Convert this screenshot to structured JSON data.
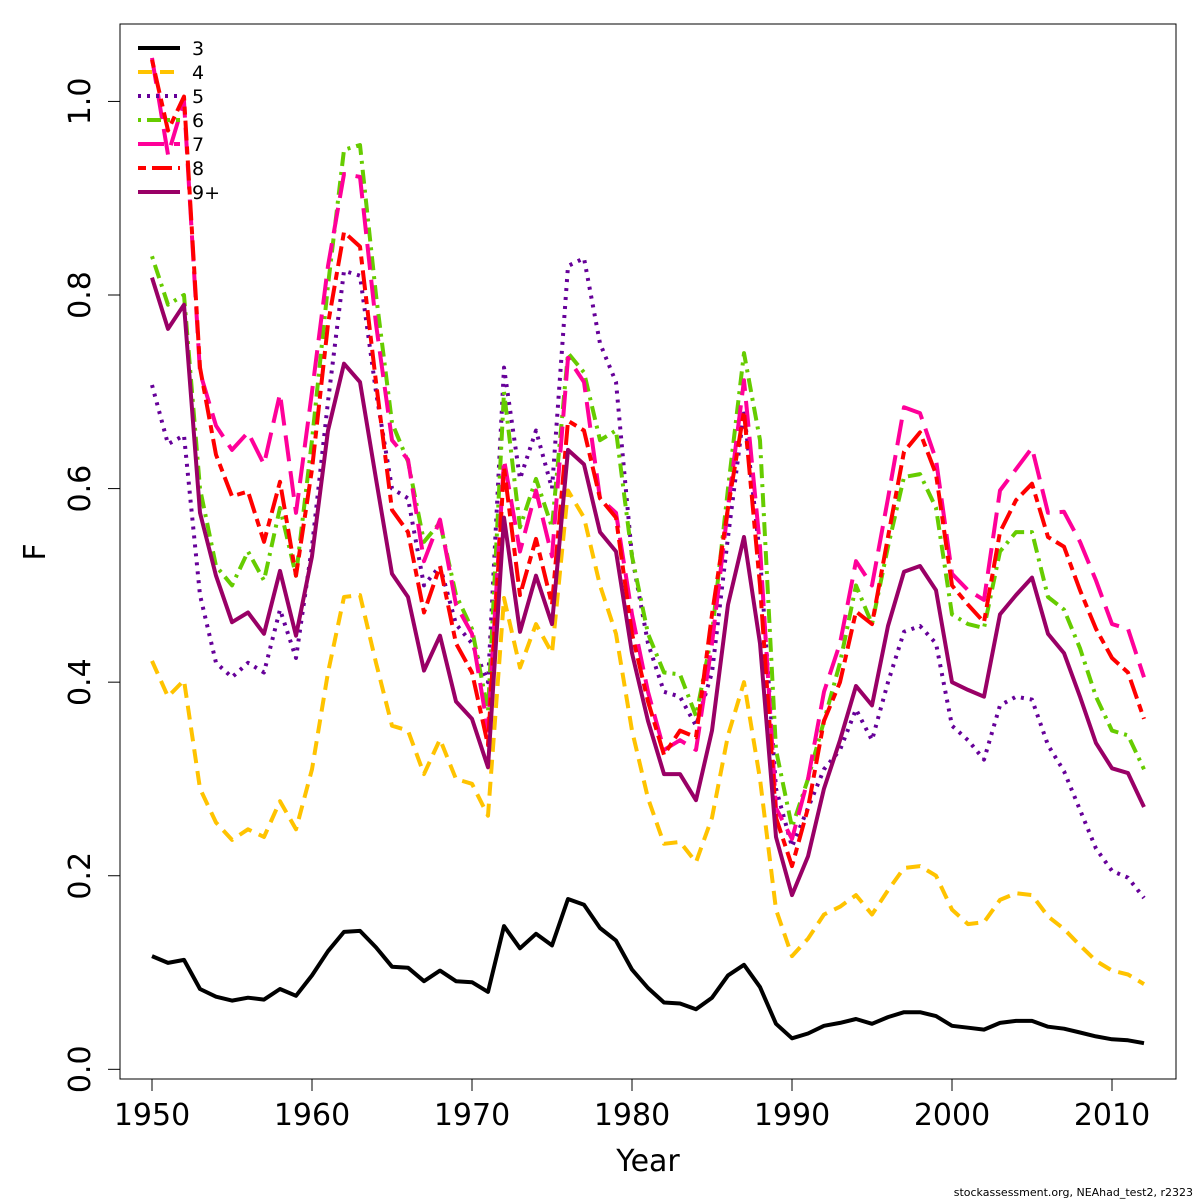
{
  "chart_data": {
    "type": "line",
    "xlabel": "Year",
    "ylabel": "F",
    "xlim": [
      1948,
      2014
    ],
    "ylim": [
      -0.01,
      1.08
    ],
    "xticks": [
      1950,
      1960,
      1970,
      1980,
      1990,
      2000,
      2010
    ],
    "yticks": [
      0.0,
      0.2,
      0.4,
      0.6,
      0.8,
      1.0
    ],
    "ytick_labels": [
      "0.0",
      "0.2",
      "0.4",
      "0.6",
      "0.8",
      "1.0"
    ],
    "grid": false,
    "legend_position": "top-left",
    "x": [
      1950,
      1951,
      1952,
      1953,
      1954,
      1955,
      1956,
      1957,
      1958,
      1959,
      1960,
      1961,
      1962,
      1963,
      1964,
      1965,
      1966,
      1967,
      1968,
      1969,
      1970,
      1971,
      1972,
      1973,
      1974,
      1975,
      1976,
      1977,
      1978,
      1979,
      1980,
      1981,
      1982,
      1983,
      1984,
      1985,
      1986,
      1987,
      1988,
      1989,
      1990,
      1991,
      1992,
      1993,
      1994,
      1995,
      1996,
      1997,
      1998,
      1999,
      2000,
      2001,
      2002,
      2003,
      2004,
      2005,
      2006,
      2007,
      2008,
      2009,
      2010,
      2011,
      2012
    ],
    "series": [
      {
        "name": "3",
        "color": "#000000",
        "dash": "solid",
        "values": [
          0.117,
          0.11,
          0.113,
          0.083,
          0.075,
          0.071,
          0.074,
          0.072,
          0.083,
          0.076,
          0.097,
          0.122,
          0.142,
          0.143,
          0.126,
          0.106,
          0.105,
          0.091,
          0.102,
          0.091,
          0.09,
          0.08,
          0.148,
          0.125,
          0.14,
          0.128,
          0.176,
          0.17,
          0.146,
          0.133,
          0.103,
          0.084,
          0.069,
          0.068,
          0.062,
          0.074,
          0.097,
          0.108,
          0.085,
          0.047,
          0.032,
          0.037,
          0.045,
          0.048,
          0.052,
          0.047,
          0.054,
          0.059,
          0.059,
          0.055,
          0.045,
          0.043,
          0.041,
          0.048,
          0.05,
          0.05,
          0.044,
          0.042,
          0.038,
          0.034,
          0.031,
          0.03,
          0.027
        ]
      },
      {
        "name": "4",
        "color": "#FFC300",
        "dash": "dashed",
        "values": [
          0.422,
          0.385,
          0.402,
          0.29,
          0.255,
          0.237,
          0.248,
          0.24,
          0.277,
          0.248,
          0.31,
          0.41,
          0.488,
          0.49,
          0.42,
          0.355,
          0.35,
          0.305,
          0.341,
          0.3,
          0.295,
          0.262,
          0.487,
          0.415,
          0.46,
          0.43,
          0.598,
          0.57,
          0.5,
          0.45,
          0.35,
          0.28,
          0.233,
          0.235,
          0.214,
          0.26,
          0.345,
          0.4,
          0.3,
          0.165,
          0.117,
          0.135,
          0.16,
          0.168,
          0.18,
          0.16,
          0.185,
          0.208,
          0.21,
          0.2,
          0.165,
          0.15,
          0.152,
          0.175,
          0.182,
          0.18,
          0.158,
          0.145,
          0.128,
          0.112,
          0.102,
          0.098,
          0.088
        ]
      },
      {
        "name": "5",
        "color": "#660099",
        "dash": "dotted",
        "values": [
          0.707,
          0.646,
          0.655,
          0.49,
          0.42,
          0.405,
          0.42,
          0.41,
          0.475,
          0.425,
          0.54,
          0.69,
          0.825,
          0.82,
          0.7,
          0.6,
          0.59,
          0.5,
          0.52,
          0.46,
          0.44,
          0.4,
          0.725,
          0.61,
          0.66,
          0.6,
          0.83,
          0.838,
          0.75,
          0.71,
          0.53,
          0.44,
          0.39,
          0.385,
          0.355,
          0.41,
          0.55,
          0.68,
          0.53,
          0.29,
          0.23,
          0.27,
          0.31,
          0.33,
          0.372,
          0.34,
          0.4,
          0.452,
          0.458,
          0.44,
          0.355,
          0.34,
          0.32,
          0.376,
          0.385,
          0.382,
          0.335,
          0.308,
          0.268,
          0.228,
          0.205,
          0.198,
          0.177
        ]
      },
      {
        "name": "6",
        "color": "#66CC00",
        "dash": "dotdash",
        "values": [
          0.84,
          0.79,
          0.8,
          0.6,
          0.52,
          0.5,
          0.535,
          0.505,
          0.58,
          0.51,
          0.65,
          0.81,
          0.95,
          0.955,
          0.8,
          0.668,
          0.628,
          0.545,
          0.565,
          0.49,
          0.455,
          0.37,
          0.7,
          0.56,
          0.61,
          0.56,
          0.74,
          0.72,
          0.65,
          0.66,
          0.53,
          0.45,
          0.41,
          0.408,
          0.365,
          0.45,
          0.6,
          0.74,
          0.65,
          0.33,
          0.25,
          0.3,
          0.36,
          0.42,
          0.5,
          0.46,
          0.54,
          0.612,
          0.615,
          0.58,
          0.47,
          0.46,
          0.456,
          0.535,
          0.555,
          0.555,
          0.488,
          0.475,
          0.435,
          0.385,
          0.35,
          0.345,
          0.31
        ]
      },
      {
        "name": "7",
        "color": "#FF0099",
        "dash": "longdash",
        "values": [
          1.045,
          0.945,
          1.0,
          0.72,
          0.665,
          0.64,
          0.658,
          0.625,
          0.698,
          0.575,
          0.7,
          0.83,
          0.925,
          0.922,
          0.77,
          0.65,
          0.63,
          0.525,
          0.568,
          0.48,
          0.45,
          0.35,
          0.63,
          0.535,
          0.598,
          0.53,
          0.735,
          0.71,
          0.59,
          0.575,
          0.47,
          0.39,
          0.33,
          0.34,
          0.33,
          0.44,
          0.58,
          0.712,
          0.54,
          0.27,
          0.238,
          0.3,
          0.39,
          0.44,
          0.525,
          0.5,
          0.59,
          0.684,
          0.678,
          0.63,
          0.512,
          0.495,
          0.485,
          0.598,
          0.62,
          0.642,
          0.575,
          0.576,
          0.545,
          0.505,
          0.46,
          0.455,
          0.405
        ]
      },
      {
        "name": "8",
        "color": "#FF0000",
        "dash": "twodash",
        "values": [
          1.043,
          0.97,
          1.005,
          0.725,
          0.635,
          0.592,
          0.597,
          0.545,
          0.607,
          0.51,
          0.62,
          0.77,
          0.865,
          0.85,
          0.71,
          0.578,
          0.555,
          0.472,
          0.52,
          0.44,
          0.41,
          0.335,
          0.622,
          0.49,
          0.548,
          0.48,
          0.67,
          0.66,
          0.59,
          0.57,
          0.45,
          0.38,
          0.325,
          0.35,
          0.343,
          0.47,
          0.58,
          0.68,
          0.5,
          0.26,
          0.21,
          0.27,
          0.36,
          0.4,
          0.473,
          0.46,
          0.55,
          0.638,
          0.658,
          0.615,
          0.5,
          0.48,
          0.462,
          0.555,
          0.588,
          0.605,
          0.55,
          0.54,
          0.495,
          0.455,
          0.425,
          0.41,
          0.362
        ]
      },
      {
        "name": "9+",
        "color": "#990066",
        "dash": "solid",
        "values": [
          0.818,
          0.765,
          0.79,
          0.575,
          0.51,
          0.462,
          0.472,
          0.45,
          0.515,
          0.448,
          0.53,
          0.66,
          0.729,
          0.71,
          0.61,
          0.512,
          0.488,
          0.412,
          0.448,
          0.38,
          0.362,
          0.312,
          0.57,
          0.452,
          0.51,
          0.46,
          0.64,
          0.625,
          0.555,
          0.535,
          0.43,
          0.36,
          0.305,
          0.305,
          0.278,
          0.35,
          0.48,
          0.55,
          0.44,
          0.24,
          0.18,
          0.22,
          0.29,
          0.34,
          0.396,
          0.376,
          0.458,
          0.514,
          0.52,
          0.495,
          0.4,
          0.392,
          0.385,
          0.47,
          0.49,
          0.508,
          0.45,
          0.43,
          0.385,
          0.337,
          0.311,
          0.306,
          0.271
        ]
      }
    ]
  },
  "footnote": "stockassessment.org, NEAhad_test2, r2323"
}
